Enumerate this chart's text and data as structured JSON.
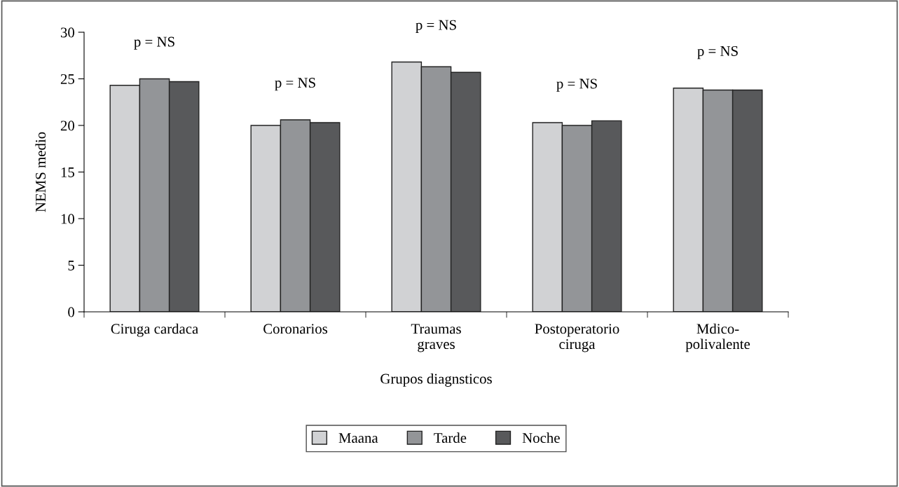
{
  "chart_data": {
    "type": "bar",
    "xlabel": "Grupos diagnsticos",
    "ylabel": "NEMS medio",
    "categories": [
      "Ciruga cardaca",
      "Coronarios",
      "Traumas\ngraves",
      "Postoperatorio\nciruga",
      "Mdico-\npolivalente"
    ],
    "series": [
      {
        "name": "Maana",
        "color": "#d1d2d4",
        "values": [
          24.3,
          20.0,
          26.8,
          20.3,
          24.0
        ]
      },
      {
        "name": "Tarde",
        "color": "#939598",
        "values": [
          25.0,
          20.6,
          26.3,
          20.0,
          23.8
        ]
      },
      {
        "name": "Noche",
        "color": "#58595b",
        "values": [
          24.7,
          20.3,
          25.7,
          20.5,
          23.8
        ]
      }
    ],
    "ylim": [
      0,
      30
    ],
    "yticks": [
      0,
      5,
      10,
      15,
      20,
      25,
      30
    ],
    "grid": false,
    "legend": "bottom",
    "annotations": [
      "p = NS",
      "p = NS",
      "p = NS",
      "p = NS",
      "p = NS"
    ]
  }
}
